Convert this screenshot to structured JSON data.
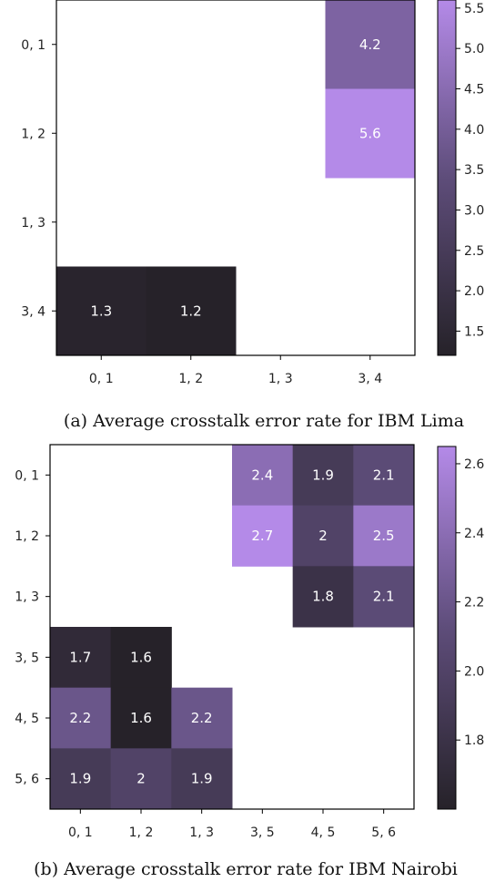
{
  "colors": {
    "cmap_low": "#262229",
    "cmap_mid": "#5e4d7a",
    "cmap_high": "#b48ae8",
    "cell_text": "#ffffff",
    "axis": "#000000"
  },
  "chart_data": [
    {
      "type": "heatmap",
      "title": "",
      "caption": "(a) Average crosstalk error rate for IBM Lima",
      "x_categories": [
        "0, 1",
        "1, 2",
        "1, 3",
        "3, 4"
      ],
      "y_categories": [
        "0, 1",
        "1, 2",
        "1, 3",
        "3, 4"
      ],
      "cells": [
        {
          "row": 0,
          "col": 3,
          "value": 4.2,
          "label": "4.2"
        },
        {
          "row": 1,
          "col": 3,
          "value": 5.6,
          "label": "5.6"
        },
        {
          "row": 3,
          "col": 0,
          "value": 1.3,
          "label": "1.3"
        },
        {
          "row": 3,
          "col": 1,
          "value": 1.2,
          "label": "1.2"
        }
      ],
      "colorbar": {
        "min": 1.2,
        "max": 5.6,
        "ticks": [
          1.5,
          2.0,
          2.5,
          3.0,
          3.5,
          4.0,
          4.5,
          5.0,
          5.5
        ],
        "tick_labels": [
          "1.5",
          "2.0",
          "2.5",
          "3.0",
          "3.5",
          "4.0",
          "4.5",
          "5.0",
          "5.5"
        ]
      }
    },
    {
      "type": "heatmap",
      "title": "",
      "caption": "(b) Average crosstalk error rate for IBM Nairobi",
      "x_categories": [
        "0, 1",
        "1, 2",
        "1, 3",
        "3, 5",
        "4, 5",
        "5, 6"
      ],
      "y_categories": [
        "0, 1",
        "1, 2",
        "1, 3",
        "3, 5",
        "4, 5",
        "5, 6"
      ],
      "cells": [
        {
          "row": 0,
          "col": 3,
          "value": 2.4,
          "label": "2.4"
        },
        {
          "row": 0,
          "col": 4,
          "value": 1.9,
          "label": "1.9"
        },
        {
          "row": 0,
          "col": 5,
          "value": 2.1,
          "label": "2.1"
        },
        {
          "row": 1,
          "col": 3,
          "value": 2.7,
          "label": "2.7"
        },
        {
          "row": 1,
          "col": 4,
          "value": 2.0,
          "label": "2"
        },
        {
          "row": 1,
          "col": 5,
          "value": 2.5,
          "label": "2.5"
        },
        {
          "row": 2,
          "col": 4,
          "value": 1.8,
          "label": "1.8"
        },
        {
          "row": 2,
          "col": 5,
          "value": 2.1,
          "label": "2.1"
        },
        {
          "row": 3,
          "col": 0,
          "value": 1.7,
          "label": "1.7"
        },
        {
          "row": 3,
          "col": 1,
          "value": 1.6,
          "label": "1.6"
        },
        {
          "row": 4,
          "col": 0,
          "value": 2.2,
          "label": "2.2"
        },
        {
          "row": 4,
          "col": 1,
          "value": 1.6,
          "label": "1.6"
        },
        {
          "row": 4,
          "col": 2,
          "value": 2.2,
          "label": "2.2"
        },
        {
          "row": 5,
          "col": 0,
          "value": 1.9,
          "label": "1.9"
        },
        {
          "row": 5,
          "col": 1,
          "value": 2.0,
          "label": "2"
        },
        {
          "row": 5,
          "col": 2,
          "value": 1.9,
          "label": "1.9"
        }
      ],
      "colorbar": {
        "min": 1.6,
        "max": 2.65,
        "ticks": [
          1.8,
          2.0,
          2.2,
          2.4,
          2.6
        ],
        "tick_labels": [
          "1.8",
          "2.0",
          "2.2",
          "2.4",
          "2.6"
        ]
      }
    }
  ]
}
